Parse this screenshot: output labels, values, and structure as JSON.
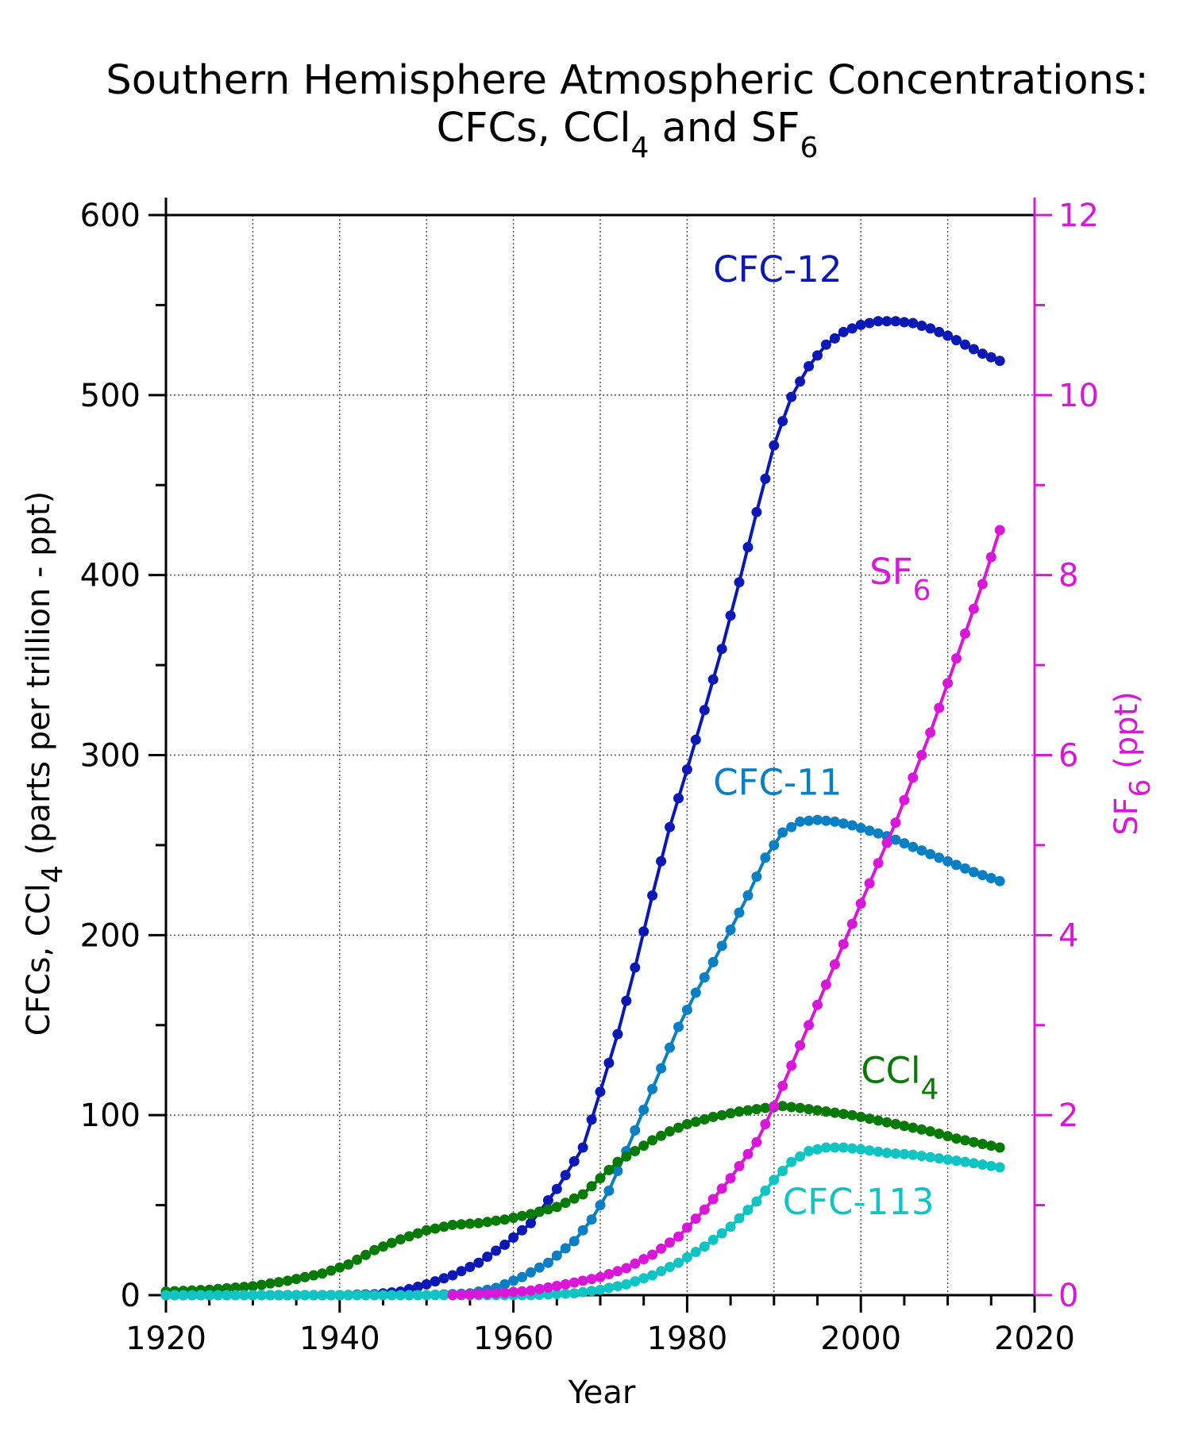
{
  "chart_data": {
    "type": "line",
    "title_line1": "Southern Hemisphere Atmospheric Concentrations:",
    "title_line2_parts": [
      "CFCs, CCl",
      "4",
      " and SF",
      "6"
    ],
    "xlabel": "Year",
    "ylabel_parts": [
      "CFCs, CCl",
      "4",
      " (parts per trillion - ppt)"
    ],
    "y2label_parts": [
      "SF",
      "6",
      " (ppt)"
    ],
    "xlim": [
      1920,
      2020
    ],
    "ylim": [
      0,
      600
    ],
    "y2lim": [
      0,
      12
    ],
    "xticks": [
      "1920",
      "1940",
      "1960",
      "1980",
      "2000",
      "2020"
    ],
    "yticks": [
      "0",
      "100",
      "200",
      "300",
      "400",
      "500",
      "600"
    ],
    "y2ticks": [
      "0",
      "2",
      "4",
      "6",
      "8",
      "10",
      "12"
    ],
    "grid": true,
    "series": [
      {
        "name": "CFC-12",
        "label_parts": [
          "CFC-12"
        ],
        "axis": "left",
        "color": "#0a18b5",
        "label_anchor": [
          1983,
          563
        ],
        "start_year": 1920,
        "end_year": 2016,
        "points": [
          [
            1920,
            0
          ],
          [
            1940,
            0
          ],
          [
            1944,
            0.5
          ],
          [
            1947,
            2
          ],
          [
            1950,
            6
          ],
          [
            1953,
            11
          ],
          [
            1956,
            18
          ],
          [
            1959,
            28
          ],
          [
            1962,
            40
          ],
          [
            1965,
            59
          ],
          [
            1968,
            82
          ],
          [
            1970,
            113
          ],
          [
            1972,
            145
          ],
          [
            1974,
            182
          ],
          [
            1976,
            222
          ],
          [
            1978,
            260
          ],
          [
            1980,
            292
          ],
          [
            1982,
            325
          ],
          [
            1984,
            359
          ],
          [
            1986,
            396
          ],
          [
            1988,
            435
          ],
          [
            1990,
            472
          ],
          [
            1992,
            499
          ],
          [
            1994,
            516
          ],
          [
            1996,
            528
          ],
          [
            1998,
            535
          ],
          [
            2000,
            539
          ],
          [
            2002,
            541
          ],
          [
            2004,
            541
          ],
          [
            2006,
            540
          ],
          [
            2008,
            537
          ],
          [
            2010,
            533
          ],
          [
            2012,
            528
          ],
          [
            2014,
            523
          ],
          [
            2016,
            519
          ]
        ]
      },
      {
        "name": "CFC-11",
        "label_parts": [
          "CFC-11"
        ],
        "axis": "left",
        "color": "#0a7fc4",
        "label_anchor": [
          1983,
          278
        ],
        "start_year": 1920,
        "end_year": 2016,
        "points": [
          [
            1920,
            0
          ],
          [
            1950,
            0
          ],
          [
            1955,
            1
          ],
          [
            1958,
            4
          ],
          [
            1961,
            10
          ],
          [
            1964,
            18
          ],
          [
            1967,
            30
          ],
          [
            1969,
            42
          ],
          [
            1971,
            58
          ],
          [
            1973,
            80
          ],
          [
            1975,
            103
          ],
          [
            1977,
            126
          ],
          [
            1979,
            149
          ],
          [
            1981,
            168
          ],
          [
            1983,
            185
          ],
          [
            1985,
            203
          ],
          [
            1987,
            222
          ],
          [
            1989,
            243
          ],
          [
            1991,
            257
          ],
          [
            1993,
            263
          ],
          [
            1995,
            264
          ],
          [
            1997,
            263
          ],
          [
            1999,
            261
          ],
          [
            2001,
            258
          ],
          [
            2003,
            255
          ],
          [
            2005,
            251
          ],
          [
            2007,
            247
          ],
          [
            2009,
            243
          ],
          [
            2011,
            239
          ],
          [
            2013,
            235
          ],
          [
            2016,
            230
          ]
        ]
      },
      {
        "name": "CCl4",
        "label_parts": [
          "CCl",
          "4"
        ],
        "axis": "left",
        "color": "#057a05",
        "label_anchor": [
          2000,
          118
        ],
        "start_year": 1920,
        "end_year": 2016,
        "points": [
          [
            1920,
            2
          ],
          [
            1925,
            3
          ],
          [
            1930,
            5
          ],
          [
            1934,
            8
          ],
          [
            1938,
            12
          ],
          [
            1941,
            17
          ],
          [
            1944,
            25
          ],
          [
            1947,
            31
          ],
          [
            1950,
            36
          ],
          [
            1953,
            39
          ],
          [
            1956,
            40
          ],
          [
            1959,
            42
          ],
          [
            1962,
            45
          ],
          [
            1965,
            49
          ],
          [
            1968,
            56
          ],
          [
            1970,
            65
          ],
          [
            1972,
            74
          ],
          [
            1974,
            80
          ],
          [
            1976,
            86
          ],
          [
            1978,
            91
          ],
          [
            1980,
            95
          ],
          [
            1983,
            99
          ],
          [
            1986,
            102
          ],
          [
            1989,
            104
          ],
          [
            1991,
            105
          ],
          [
            1993,
            104
          ],
          [
            1996,
            102
          ],
          [
            1999,
            100
          ],
          [
            2002,
            97
          ],
          [
            2005,
            94
          ],
          [
            2008,
            91
          ],
          [
            2011,
            87
          ],
          [
            2014,
            84
          ],
          [
            2016,
            82
          ]
        ]
      },
      {
        "name": "CFC-113",
        "label_parts": [
          "CFC-113"
        ],
        "axis": "left",
        "color": "#10c4c4",
        "label_anchor": [
          1991,
          45
        ],
        "start_year": 1920,
        "end_year": 2016,
        "points": [
          [
            1920,
            0
          ],
          [
            1962,
            0
          ],
          [
            1967,
            1
          ],
          [
            1970,
            3
          ],
          [
            1973,
            6
          ],
          [
            1976,
            11
          ],
          [
            1979,
            18
          ],
          [
            1982,
            27
          ],
          [
            1985,
            38
          ],
          [
            1988,
            52
          ],
          [
            1990,
            64
          ],
          [
            1992,
            74
          ],
          [
            1994,
            80
          ],
          [
            1996,
            82
          ],
          [
            1998,
            82
          ],
          [
            2000,
            81
          ],
          [
            2003,
            79
          ],
          [
            2006,
            78
          ],
          [
            2009,
            76
          ],
          [
            2012,
            74
          ],
          [
            2016,
            71
          ]
        ]
      },
      {
        "name": "SF6",
        "label_parts": [
          "SF",
          "6"
        ],
        "axis": "right",
        "color": "#d917d9",
        "label_anchor": [
          2001,
          7.9
        ],
        "start_year": 1953,
        "end_year": 2016,
        "points": [
          [
            1953,
            0
          ],
          [
            1958,
            0.02
          ],
          [
            1962,
            0.05
          ],
          [
            1966,
            0.12
          ],
          [
            1970,
            0.2
          ],
          [
            1973,
            0.3
          ],
          [
            1976,
            0.45
          ],
          [
            1979,
            0.65
          ],
          [
            1982,
            0.95
          ],
          [
            1985,
            1.3
          ],
          [
            1988,
            1.7
          ],
          [
            1990,
            2.1
          ],
          [
            1992,
            2.55
          ],
          [
            1994,
            3.0
          ],
          [
            1996,
            3.45
          ],
          [
            1998,
            3.9
          ],
          [
            2000,
            4.35
          ],
          [
            2002,
            4.8
          ],
          [
            2004,
            5.25
          ],
          [
            2006,
            5.75
          ],
          [
            2008,
            6.25
          ],
          [
            2010,
            6.8
          ],
          [
            2012,
            7.35
          ],
          [
            2014,
            7.9
          ],
          [
            2016,
            8.5
          ]
        ]
      }
    ]
  }
}
